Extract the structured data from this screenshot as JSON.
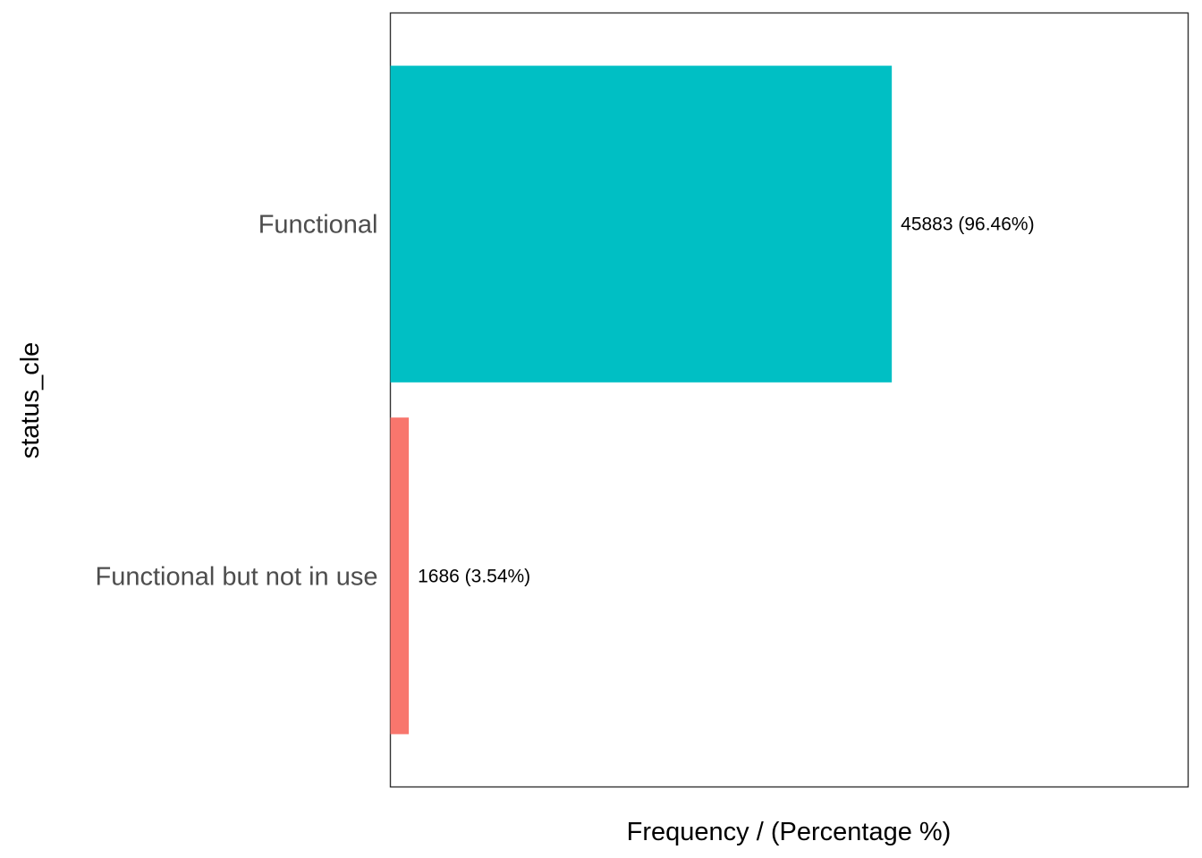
{
  "chart_data": {
    "type": "bar",
    "orientation": "horizontal",
    "categories": [
      "Functional",
      "Functional but not in use"
    ],
    "values": [
      45883,
      1686
    ],
    "percentages": [
      96.46,
      3.54
    ],
    "data_labels": [
      "45883 (96.46%)",
      "1686 (3.54%)"
    ],
    "colors": [
      "#00BFC4",
      "#F8766D"
    ],
    "xlabel": "Frequency / (Percentage %)",
    "ylabel": "status_cle",
    "xlim": [
      0,
      73000
    ],
    "x_ticks_shown": false,
    "grid": false,
    "legend": "none",
    "panel_border": true
  }
}
